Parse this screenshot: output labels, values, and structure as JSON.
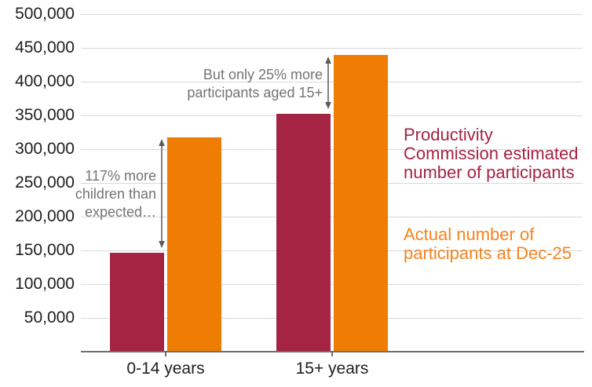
{
  "chart_data": {
    "type": "bar",
    "title": "",
    "categories": [
      "0-14 years",
      "15+ years"
    ],
    "series": [
      {
        "name": "Productivity Commission estimated number of participants",
        "color": "#a52343",
        "values": [
          146000,
          352000
        ]
      },
      {
        "name": "Actual number of participants at Dec-25",
        "color": "#ef7d04",
        "values": [
          317000,
          440000
        ]
      }
    ],
    "ylim": [
      0,
      500000
    ],
    "ytick_step": 50000,
    "ytick_labels": [
      "50,000",
      "100,000",
      "150,000",
      "200,000",
      "250,000",
      "300,000",
      "350,000",
      "400,000",
      "450,000",
      "500,000"
    ],
    "grid": true,
    "legend_position": "right",
    "annotations": [
      {
        "text": "117% more children than expected…",
        "lines": [
          "117% more",
          "children than",
          "expected…"
        ],
        "category_index": 0,
        "from_value": 146000,
        "to_value": 317000
      },
      {
        "text": "But only 25% more participants aged 15+",
        "lines": [
          "But only 25% more",
          "participants aged 15+"
        ],
        "category_index": 1,
        "from_value": 352000,
        "to_value": 440000
      }
    ]
  },
  "legend": {
    "estimated": {
      "text": "Productivity Commission estimated number of participants",
      "lines": [
        "Productivity",
        "Commission estimated",
        "number of participants"
      ],
      "color": "#a52343"
    },
    "actual": {
      "text": "Actual number of participants at Dec-25",
      "lines": [
        "Actual number of",
        "participants at Dec-25"
      ],
      "color": "#f5831d"
    }
  },
  "colors": {
    "estimated_bar": "#a52343",
    "actual_bar": "#ef7d04",
    "gridline": "#d9d9d9",
    "axis": "#6e6e6e",
    "annotation_text": "#737373",
    "arrow": "#595959"
  }
}
